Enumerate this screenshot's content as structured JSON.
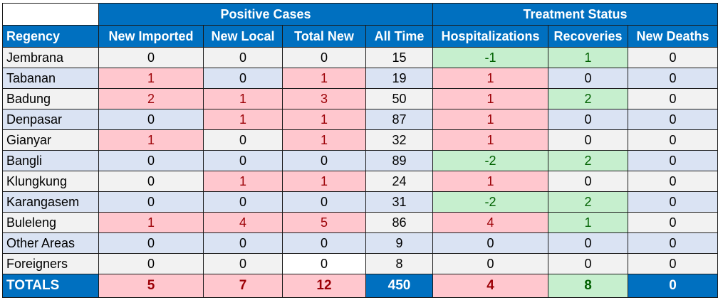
{
  "headers": {
    "positive_group": "Positive Cases",
    "treatment_group": "Treatment Status",
    "columns": [
      "Regency",
      "New Imported",
      "New Local",
      "Total New",
      "All Time",
      "Hospitalizations",
      "Recoveries",
      "New Deaths"
    ]
  },
  "rows": [
    {
      "name": "Jembrana",
      "cells": [
        "0",
        "0",
        "0",
        "15",
        "-1",
        "1",
        "0"
      ],
      "styles": [
        "",
        "",
        "",
        "",
        "green",
        "green",
        ""
      ]
    },
    {
      "name": "Tabanan",
      "cells": [
        "1",
        "0",
        "1",
        "19",
        "1",
        "0",
        "0"
      ],
      "styles": [
        "pink",
        "",
        "pink",
        "",
        "pink",
        "",
        ""
      ]
    },
    {
      "name": "Badung",
      "cells": [
        "2",
        "1",
        "3",
        "50",
        "1",
        "2",
        "0"
      ],
      "styles": [
        "pink",
        "pink",
        "pink",
        "",
        "pink",
        "green",
        ""
      ]
    },
    {
      "name": "Denpasar",
      "cells": [
        "0",
        "1",
        "1",
        "87",
        "1",
        "0",
        "0"
      ],
      "styles": [
        "",
        "pink",
        "pink",
        "",
        "pink",
        "",
        ""
      ]
    },
    {
      "name": "Gianyar",
      "cells": [
        "1",
        "0",
        "1",
        "32",
        "1",
        "0",
        "0"
      ],
      "styles": [
        "pink",
        "",
        "pink",
        "",
        "pink",
        "",
        ""
      ]
    },
    {
      "name": "Bangli",
      "cells": [
        "0",
        "0",
        "0",
        "89",
        "-2",
        "2",
        "0"
      ],
      "styles": [
        "",
        "",
        "",
        "",
        "green",
        "green",
        ""
      ]
    },
    {
      "name": "Klungkung",
      "cells": [
        "0",
        "1",
        "1",
        "24",
        "1",
        "0",
        "0"
      ],
      "styles": [
        "",
        "pink",
        "pink",
        "",
        "pink",
        "",
        ""
      ]
    },
    {
      "name": "Karangasem",
      "cells": [
        "0",
        "0",
        "0",
        "31",
        "-2",
        "2",
        "0"
      ],
      "styles": [
        "",
        "",
        "",
        "",
        "green",
        "green",
        ""
      ]
    },
    {
      "name": "Buleleng",
      "cells": [
        "1",
        "4",
        "5",
        "86",
        "4",
        "1",
        "0"
      ],
      "styles": [
        "pink",
        "pink",
        "pink",
        "",
        "pink",
        "green",
        ""
      ]
    },
    {
      "name": "Other Areas",
      "cells": [
        "0",
        "0",
        "0",
        "9",
        "0",
        "0",
        "0"
      ],
      "styles": [
        "",
        "",
        "",
        "",
        "",
        "",
        ""
      ]
    },
    {
      "name": "Foreigners",
      "cells": [
        "0",
        "0",
        "0",
        "8",
        "0",
        "0",
        "0"
      ],
      "styles": [
        "",
        "",
        "white",
        "",
        "",
        "",
        ""
      ]
    }
  ],
  "totals": {
    "label": "TOTALS",
    "cells": [
      "5",
      "7",
      "12",
      "450",
      "4",
      "8",
      "0"
    ],
    "styles": [
      "pink",
      "pink",
      "pink",
      "blue",
      "pink",
      "green",
      "blue"
    ]
  }
}
